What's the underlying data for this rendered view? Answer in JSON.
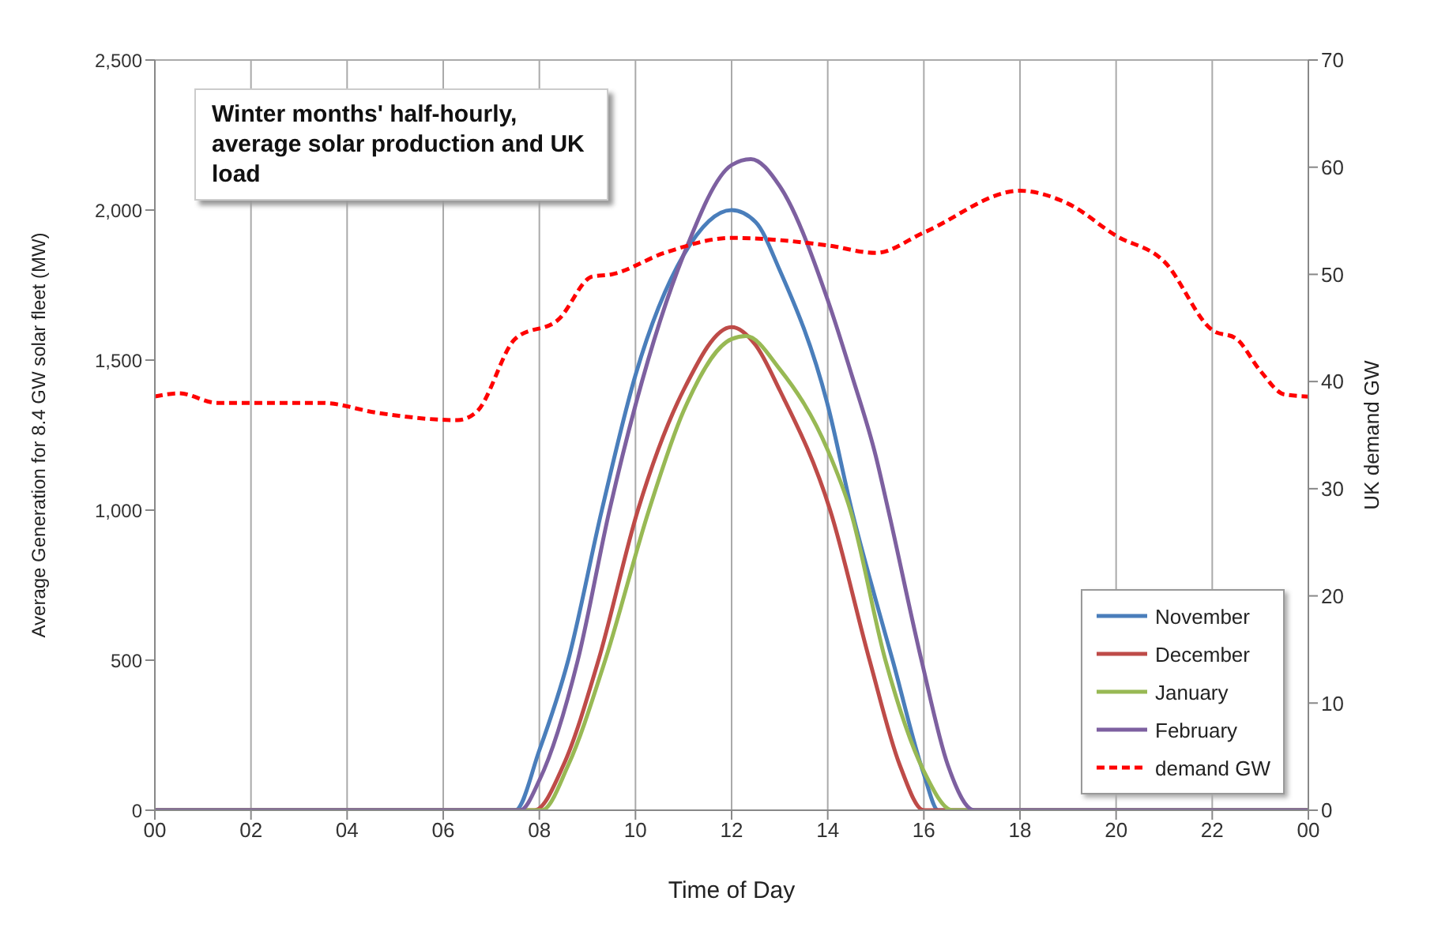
{
  "chart_data": {
    "type": "line",
    "title": "Winter months' half-hourly, average solar production and UK load",
    "xlabel": "Time of Day",
    "ylabel": "Average Generation for 8.4 GW solar fleet (MW)",
    "y2label": "UK demand GW",
    "xlim": [
      0,
      24
    ],
    "xticks": [
      {
        "value": 0,
        "label": "00"
      },
      {
        "value": 2,
        "label": "02"
      },
      {
        "value": 4,
        "label": "04"
      },
      {
        "value": 6,
        "label": "06"
      },
      {
        "value": 8,
        "label": "08"
      },
      {
        "value": 10,
        "label": "10"
      },
      {
        "value": 12,
        "label": "12"
      },
      {
        "value": 14,
        "label": "14"
      },
      {
        "value": 16,
        "label": "16"
      },
      {
        "value": 18,
        "label": "18"
      },
      {
        "value": 20,
        "label": "20"
      },
      {
        "value": 22,
        "label": "22"
      },
      {
        "value": 24,
        "label": "00"
      }
    ],
    "ylim": [
      0,
      2500
    ],
    "yticks": [
      0,
      {
        "value": 500,
        "label": "500"
      },
      {
        "value": 1000,
        "label": "1,000"
      },
      {
        "value": 1500,
        "label": "1,500"
      },
      {
        "value": 2000,
        "label": "2,000"
      },
      {
        "value": 2500,
        "label": "2,500"
      }
    ],
    "y2lim": [
      0,
      70
    ],
    "y2ticks": [
      0,
      10,
      20,
      30,
      40,
      50,
      60,
      70
    ],
    "grid": true,
    "legend": "bottom right",
    "marker": "none",
    "series": [
      {
        "name": "November",
        "color": "#4a7ebb",
        "x": [
          0,
          7.5,
          8,
          8.6,
          9.3,
          10,
          11,
          12,
          12.5,
          13,
          14,
          14.5,
          15,
          15.35,
          16,
          16.3,
          24
        ],
        "values": [
          0,
          0,
          200,
          500,
          1000,
          1450,
          1850,
          2000,
          1960,
          1800,
          1350,
          1000,
          700,
          500,
          120,
          0,
          0
        ]
      },
      {
        "name": "December",
        "color": "#be4b48",
        "x": [
          0,
          7.9,
          8.5,
          9.23,
          10.05,
          11,
          12,
          12.5,
          13,
          14.05,
          14.87,
          15.5,
          16,
          24
        ],
        "values": [
          0,
          0,
          150,
          500,
          1000,
          1400,
          1610,
          1550,
          1400,
          1000,
          500,
          150,
          0,
          0
        ]
      },
      {
        "name": "January",
        "color": "#98b954",
        "x": [
          0,
          8.05,
          8.6,
          9.37,
          10.28,
          11,
          12,
          12.3,
          13,
          14,
          14.47,
          15.2,
          16,
          16.6,
          24
        ],
        "values": [
          0,
          0,
          150,
          500,
          1000,
          1330,
          1570,
          1580,
          1470,
          1200,
          1000,
          500,
          130,
          0,
          0
        ]
      },
      {
        "name": "February",
        "color": "#7d60a0",
        "x": [
          0,
          7.6,
          8,
          8.8,
          9.46,
          10,
          11,
          12,
          12.4,
          13,
          14,
          14.5,
          15,
          15.26,
          15.95,
          16.5,
          17.05,
          24
        ],
        "values": [
          0,
          0,
          100,
          500,
          1000,
          1350,
          1850,
          2150,
          2170,
          2080,
          1700,
          1450,
          1180,
          1000,
          500,
          150,
          0,
          0
        ]
      },
      {
        "name": "demand GW",
        "color": "#ff0000",
        "axis": "y2",
        "line_style": "dashed",
        "x": [
          0,
          0.5,
          1.3,
          3.5,
          4.6,
          6.3,
          6.7,
          7.5,
          8.4,
          9.1,
          9.5,
          10.6,
          12,
          14,
          15,
          16,
          18,
          19,
          20,
          21,
          22,
          22.5,
          23,
          23.5,
          24
        ],
        "values": [
          38.6,
          38.9,
          38,
          38,
          37.1,
          36.4,
          37.2,
          44,
          45.8,
          49.8,
          50,
          52,
          53.4,
          52.7,
          52,
          53.9,
          57.8,
          56.6,
          53.6,
          51.2,
          44.8,
          44,
          41,
          38.8,
          38.6
        ]
      }
    ]
  }
}
